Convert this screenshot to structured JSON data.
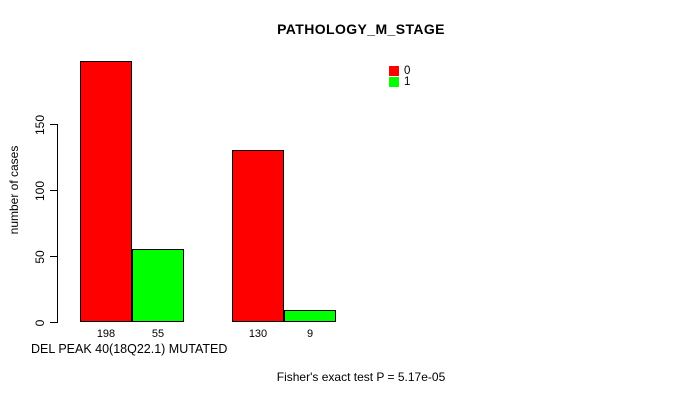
{
  "chart_data": {
    "type": "bar",
    "title": "PATHOLOGY_M_STAGE",
    "ylabel": "number of cases",
    "xlabel": "DEL PEAK 40(18Q22.1) MUTATED",
    "annotation": "Fisher's exact test P = 5.17e-05",
    "yticks": [
      0,
      50,
      100,
      150
    ],
    "ylim": [
      0,
      200
    ],
    "grid": false,
    "legend": {
      "position": "top-right",
      "entries": [
        {
          "label": "0",
          "color": "#ff0000"
        },
        {
          "label": "1",
          "color": "#00ff00"
        }
      ]
    },
    "groups": [
      {
        "bars": [
          {
            "series": "0",
            "value": 198,
            "label": "198",
            "color": "#ff0000"
          },
          {
            "series": "1",
            "value": 55,
            "label": "55",
            "color": "#00ff00"
          }
        ]
      },
      {
        "bars": [
          {
            "series": "0",
            "value": 130,
            "label": "130",
            "color": "#ff0000"
          },
          {
            "series": "1",
            "value": 9,
            "label": "9",
            "color": "#00ff00"
          }
        ]
      }
    ]
  }
}
